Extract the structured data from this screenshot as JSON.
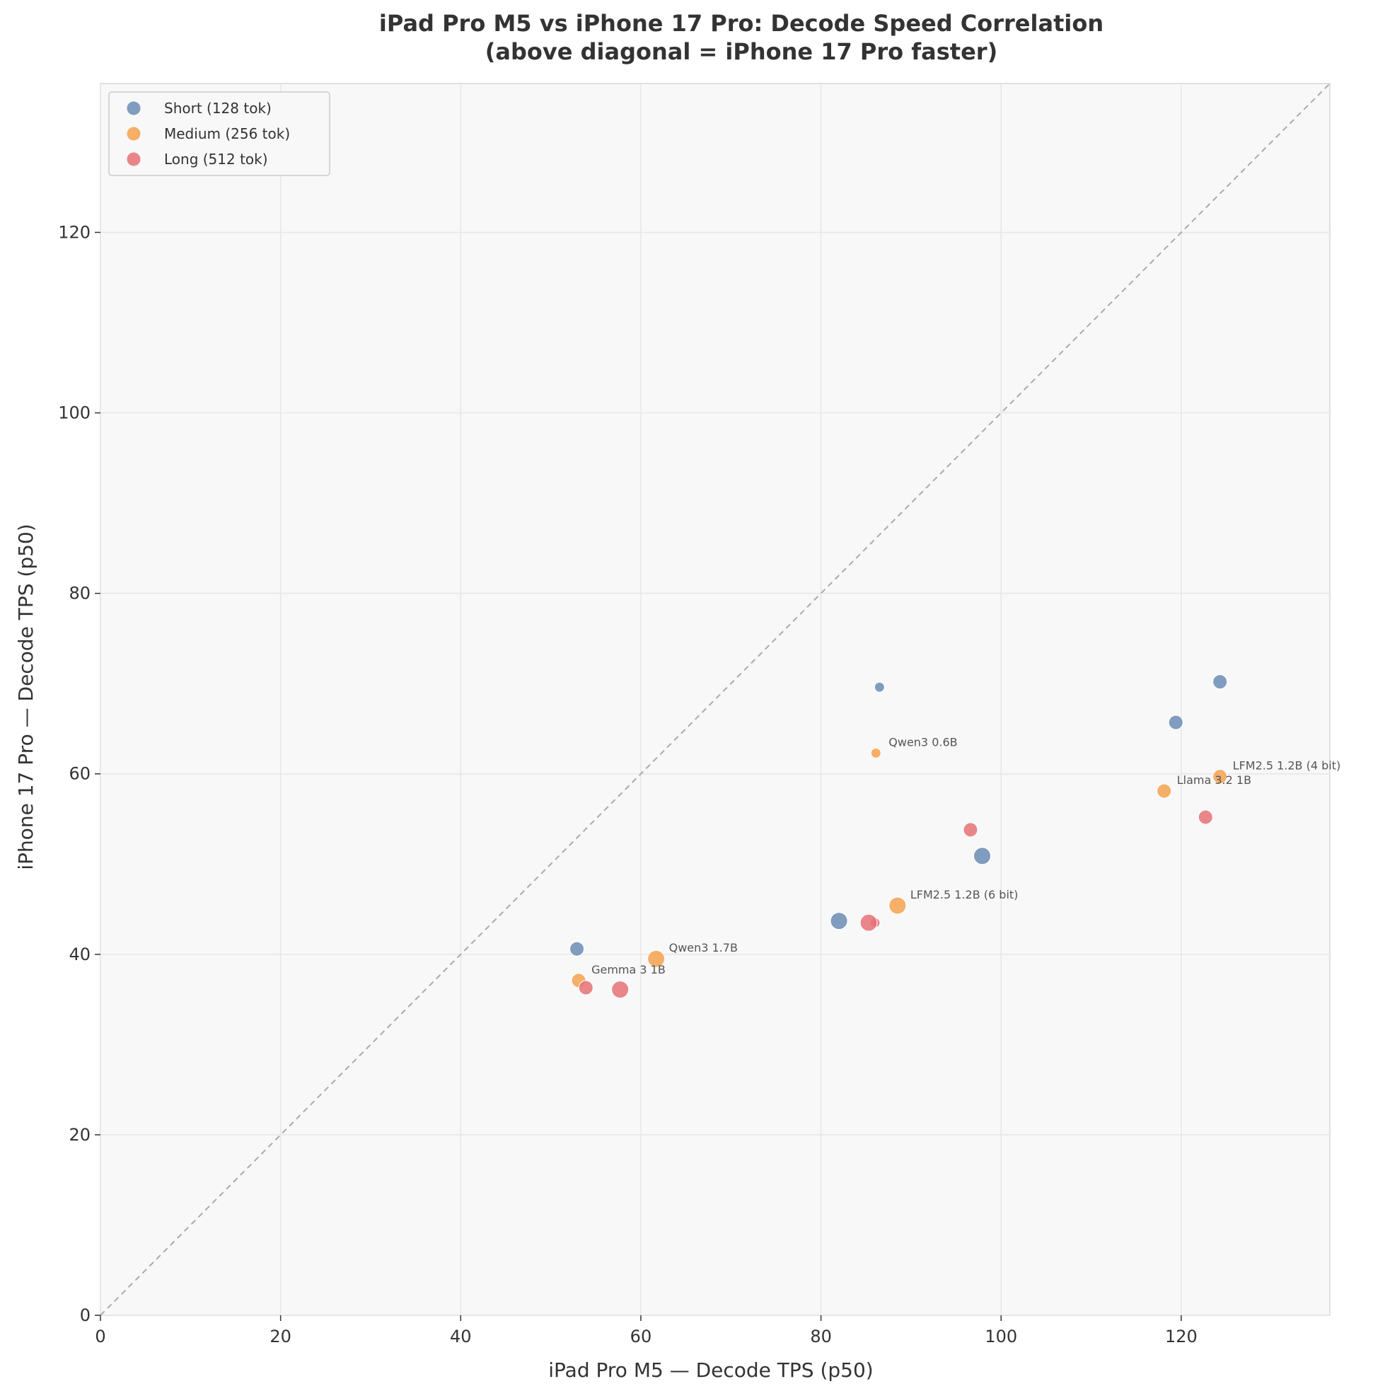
{
  "chart_data": {
    "type": "scatter",
    "title_line1": "iPad Pro M5 vs iPhone 17 Pro: Decode Speed Correlation",
    "title_line2": "(above diagonal = iPhone 17 Pro faster)",
    "xlabel": "iPad Pro M5 — Decode TPS (p50)",
    "ylabel": "iPhone 17 Pro — Decode TPS (p50)",
    "xlim": [
      0,
      136.5
    ],
    "ylim": [
      0,
      136.5
    ],
    "xticks": [
      0,
      20,
      40,
      60,
      80,
      100,
      120
    ],
    "yticks": [
      0,
      20,
      40,
      60,
      80,
      100,
      120
    ],
    "grid": true,
    "diagonal": "y = x (dashed)",
    "legend_position": "top-left",
    "series": [
      {
        "name": "Short (128 tok)",
        "color": "#6b8cb5",
        "points": [
          {
            "x": 86.5,
            "y": 69.6,
            "model_size_rank": 1
          },
          {
            "x": 124.3,
            "y": 70.2,
            "model_size_rank": 3
          },
          {
            "x": 119.4,
            "y": 65.7,
            "model_size_rank": 3
          },
          {
            "x": 97.9,
            "y": 50.9,
            "model_size_rank": 4
          },
          {
            "x": 82.0,
            "y": 43.7,
            "model_size_rank": 4
          },
          {
            "x": 52.9,
            "y": 40.6,
            "model_size_rank": 3
          }
        ]
      },
      {
        "name": "Medium (256 tok)",
        "color": "#f5a24f",
        "points": [
          {
            "x": 86.1,
            "y": 62.3,
            "model_size_rank": 1,
            "label": "Qwen3 0.6B"
          },
          {
            "x": 124.3,
            "y": 59.7,
            "model_size_rank": 3,
            "label": "LFM2.5 1.2B (4 bit)"
          },
          {
            "x": 118.1,
            "y": 58.1,
            "model_size_rank": 3,
            "label": "Llama 3.2 1B"
          },
          {
            "x": 88.5,
            "y": 45.4,
            "model_size_rank": 4,
            "label": "LFM2.5 1.2B (6 bit)"
          },
          {
            "x": 61.7,
            "y": 39.5,
            "model_size_rank": 4,
            "label": "Qwen3 1.7B"
          },
          {
            "x": 53.1,
            "y": 37.1,
            "model_size_rank": 3,
            "label": "Gemma 3 1B"
          }
        ]
      },
      {
        "name": "Long (512 tok)",
        "color": "#e67277",
        "points": [
          {
            "x": 86.0,
            "y": 43.5,
            "model_size_rank": 1
          },
          {
            "x": 122.7,
            "y": 55.2,
            "model_size_rank": 3
          },
          {
            "x": 96.6,
            "y": 53.8,
            "model_size_rank": 3
          },
          {
            "x": 85.3,
            "y": 43.5,
            "model_size_rank": 4
          },
          {
            "x": 57.7,
            "y": 36.1,
            "model_size_rank": 4
          },
          {
            "x": 53.9,
            "y": 36.3,
            "model_size_rank": 3
          }
        ]
      }
    ]
  }
}
